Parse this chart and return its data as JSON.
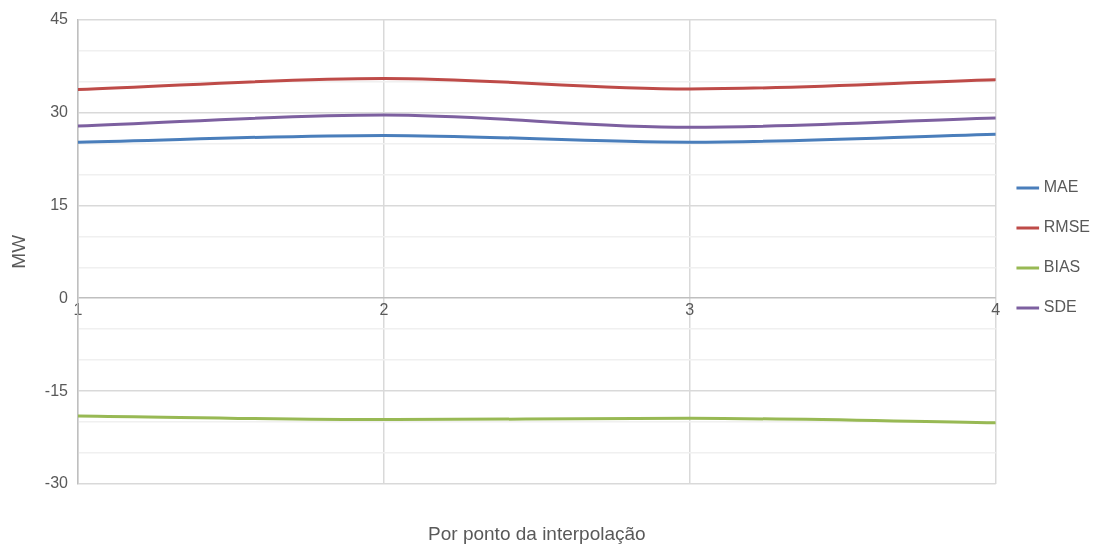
{
  "chart_data": {
    "type": "line",
    "xlabel": "Por ponto da interpolação",
    "ylabel": "MW",
    "x": [
      1,
      2,
      3,
      4
    ],
    "xlim": [
      1,
      4
    ],
    "xticks": [
      1,
      2,
      3,
      4
    ],
    "ylim": [
      -30,
      45
    ],
    "yticks": [
      -30,
      {
        "value": -25,
        "label": null
      },
      {
        "value": -20,
        "label": null
      },
      -15,
      {
        "value": -10,
        "label": null
      },
      {
        "value": -5,
        "label": null
      },
      0,
      {
        "value": 5,
        "label": null
      },
      {
        "value": 10,
        "label": null
      },
      15,
      {
        "value": 20,
        "label": null
      },
      {
        "value": 25,
        "label": null
      },
      30,
      {
        "value": 35,
        "label": null
      },
      {
        "value": 40,
        "label": null
      },
      45
    ],
    "grid": true,
    "legend": "right",
    "marker": "none",
    "line_style": "solid",
    "series": [
      {
        "name": "MAE",
        "color": "#4a7ebb",
        "values": [
          25.2,
          26.3,
          25.2,
          26.5
        ]
      },
      {
        "name": "RMSE",
        "color": "#be4b48",
        "values": [
          33.7,
          35.5,
          33.8,
          35.3
        ]
      },
      {
        "name": "BIAS",
        "color": "#98b954",
        "values": [
          -19.0,
          -19.6,
          -19.4,
          -20.1
        ]
      },
      {
        "name": "SDE",
        "color": "#7d60a0",
        "values": [
          27.8,
          29.6,
          27.6,
          29.1
        ]
      }
    ]
  }
}
